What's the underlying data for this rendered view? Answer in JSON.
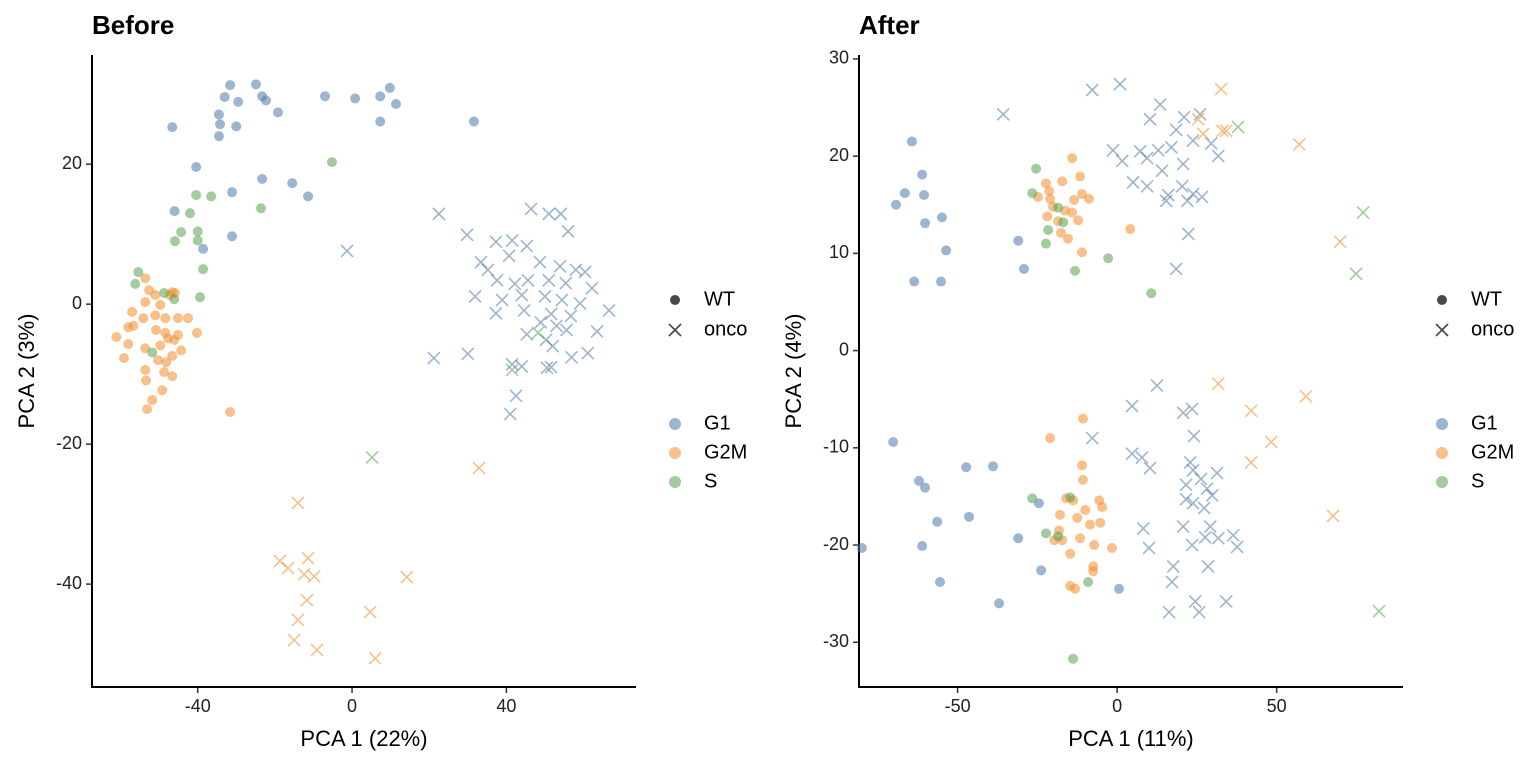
{
  "chart_data": [
    {
      "type": "scatter",
      "title": "Before",
      "xlabel": "PCA 1 (22%)",
      "ylabel": "PCA 2 (3%)",
      "xlim": [
        -67.4,
        73.6
      ],
      "ylim": [
        -54.7,
        35.6
      ],
      "xticks": [
        -40,
        0,
        40
      ],
      "yticks": [
        -40,
        -20,
        0,
        20
      ],
      "opacity": 0.55,
      "shape_legend": [
        {
          "name": "WT",
          "marker": "circle"
        },
        {
          "name": "onco",
          "marker": "x"
        }
      ],
      "color_legend": [
        {
          "name": "G1",
          "color": "#4e79a7"
        },
        {
          "name": "G2M",
          "color": "#f28e2b"
        },
        {
          "name": "S",
          "color": "#59a14f"
        }
      ],
      "series": [
        {
          "phase": "G1",
          "genotype": "WT",
          "x": [
            -46.6,
            -31.6,
            -24.9,
            -23.3,
            -33,
            -29.5,
            -34.5,
            -34.2,
            -34.5,
            -30,
            -22.3,
            -19.2,
            -7,
            0.8,
            7.3,
            9.8,
            11.4,
            7.3,
            31.6,
            -40.4,
            -46,
            -31.1,
            -23.3,
            -15.5,
            -11.4,
            -31.1,
            -38.6
          ],
          "y": [
            25.3,
            31.3,
            31.4,
            29.7,
            29.6,
            28.9,
            27.1,
            25.7,
            24,
            25.4,
            29.1,
            27.4,
            29.7,
            29.4,
            29.7,
            30.9,
            28.6,
            26.1,
            26.1,
            19.6,
            13.3,
            16,
            17.9,
            17.3,
            15.4,
            9.7,
            7.9
          ]
        },
        {
          "phase": "G2M",
          "genotype": "WT",
          "x": [
            -53.6,
            -52.6,
            -51,
            -53.6,
            -49.7,
            -47.2,
            -45.9,
            -57,
            -54.1,
            -51,
            -48.4,
            -45.1,
            -42.5,
            -61.1,
            -58,
            -56.7,
            -50.8,
            -48.4,
            -45.1,
            -40.2,
            -58,
            -53.6,
            -49.7,
            -47.7,
            -46.1,
            -44.3,
            -59.1,
            -50.3,
            -48.2,
            -46.6,
            -53.6,
            -48.7,
            -46.6,
            -53.4,
            -49.2,
            -51.8,
            -53.1,
            -31.6,
            -46.6
          ],
          "y": [
            3.7,
            2,
            1.3,
            0.3,
            -0.1,
            1.3,
            1.6,
            -1.1,
            -2,
            -1.6,
            -2,
            -2,
            -2,
            -4.7,
            -3.3,
            -3.1,
            -3.7,
            -4.1,
            -4.4,
            -4.1,
            -5.7,
            -6.3,
            -5.9,
            -4.9,
            -5.1,
            -6.6,
            -7.7,
            -8,
            -8.3,
            -7.4,
            -9.4,
            -9.7,
            -10.3,
            -10.9,
            -12.3,
            -13.7,
            -15,
            -15.4,
            1.7
          ]
        },
        {
          "phase": "S",
          "genotype": "WT",
          "x": [
            -5.2,
            -23.6,
            -36.5,
            -40.4,
            -42,
            -44.3,
            -40,
            -45.9,
            -40,
            -38.6,
            -55.4,
            -56.2,
            -39.4,
            -48.7,
            -46.1,
            -51.8
          ],
          "y": [
            20.3,
            13.7,
            15.4,
            15.6,
            13,
            10.3,
            10.4,
            9,
            9.1,
            5,
            4.6,
            2.9,
            1,
            1.6,
            0.7,
            -6.9
          ]
        },
        {
          "phase": "G1",
          "genotype": "onco",
          "x": [
            22.5,
            29.8,
            46.4,
            51,
            54.1,
            -1.3,
            37.3,
            41.5,
            56,
            33.4,
            35.2,
            40.7,
            45.3,
            48.7,
            53.9,
            58,
            60.4,
            37.6,
            42.2,
            45.6,
            51,
            55.4,
            62.2,
            31.9,
            38.9,
            44,
            50,
            54.4,
            59.1,
            66.6,
            37.3,
            44.6,
            51.6,
            56.7,
            48.9,
            53,
            55.6,
            63.5,
            45.3,
            50.3,
            52,
            56.9,
            61.1,
            21.2,
            30,
            41.5,
            44,
            50.5,
            42.5,
            41,
            51.6
          ],
          "y": [
            12.9,
            9.9,
            13.6,
            12.9,
            12.9,
            7.6,
            8.9,
            9.1,
            10.4,
            6,
            4.9,
            6.9,
            8.3,
            6,
            5.4,
            4.9,
            4.6,
            3.4,
            2.9,
            3.4,
            3.4,
            3,
            2.3,
            1.1,
            0.6,
            1.3,
            1.1,
            0.6,
            0.1,
            -0.9,
            -1.3,
            -0.9,
            -1.4,
            -1.7,
            -2.6,
            -3.1,
            -3.7,
            -3.9,
            -4.3,
            -5.1,
            -6,
            -7.6,
            -7,
            -7.7,
            -7.1,
            -8.6,
            -8.9,
            -9.1,
            -13.1,
            -15.7,
            -9
          ]
        },
        {
          "phase": "G2M",
          "genotype": "onco",
          "x": [
            -14,
            -18.7,
            -16.6,
            -11.4,
            -12.4,
            -9.8,
            14.2,
            -11.7,
            4.7,
            -14,
            -15,
            -9.1,
            6,
            32.9
          ],
          "y": [
            -28.4,
            -36.7,
            -37.7,
            -36.3,
            -38.6,
            -38.9,
            -39,
            -42.3,
            -44,
            -45.1,
            -48,
            -49.4,
            -50.6,
            -23.4
          ]
        },
        {
          "phase": "S",
          "genotype": "onco",
          "x": [
            5.2,
            41.5,
            48.2
          ],
          "y": [
            -21.9,
            -9.4,
            -4.1
          ]
        }
      ]
    },
    {
      "type": "scatter",
      "title": "After",
      "xlabel": "PCA 1 (11%)",
      "ylabel": "PCA 2 (4%)",
      "xlim": [
        -80.9,
        89.6
      ],
      "ylim": [
        -34.6,
        30.4
      ],
      "xticks": [
        -50,
        0,
        50
      ],
      "yticks": [
        -30,
        -20,
        -10,
        0,
        10,
        20,
        30
      ],
      "opacity": 0.55,
      "shape_legend": [
        {
          "name": "WT",
          "marker": "circle"
        },
        {
          "name": "onco",
          "marker": "x"
        }
      ],
      "color_legend": [
        {
          "name": "G1",
          "color": "#4e79a7"
        },
        {
          "name": "G2M",
          "color": "#f28e2b"
        },
        {
          "name": "S",
          "color": "#59a14f"
        }
      ],
      "series": [
        {
          "phase": "G1",
          "genotype": "WT",
          "x": [
            -64.3,
            -66.5,
            -61.1,
            -60.5,
            -69.3,
            -54.9,
            -60.2,
            -53.6,
            -63.6,
            -55.2,
            -31,
            -29.2,
            -70.2,
            -62.1,
            -60.2,
            -47.3,
            -38.9,
            -80,
            -56.4,
            -61.1,
            -46.4,
            -31,
            -24.5,
            -23.8,
            -55.5,
            -37,
            0.6
          ],
          "y": [
            21.5,
            16.2,
            18.1,
            16,
            15,
            13.7,
            13.1,
            10.3,
            7.1,
            7.1,
            11.3,
            8.4,
            -9.4,
            -13.4,
            -14.1,
            -12,
            -11.9,
            -20.3,
            -17.6,
            -20.1,
            -17.1,
            -19.3,
            -15.7,
            -22.6,
            -23.8,
            -26,
            -24.5
          ]
        },
        {
          "phase": "G2M",
          "genotype": "WT",
          "x": [
            -14.1,
            -22.3,
            -21.3,
            -17.2,
            -11.6,
            -11,
            -24.8,
            -21,
            -13.5,
            -8.8,
            -20.1,
            -16.3,
            -14.1,
            -21.9,
            -18.5,
            -12.2,
            -17.6,
            -15.4,
            4.1,
            -11,
            -21,
            -10.7,
            -11,
            -10.7,
            -16,
            -13.8,
            -10,
            -5.6,
            -4.7,
            -17.9,
            -12.5,
            -8.5,
            -5.3,
            -18.2,
            -17.2,
            -11.6,
            -7.2,
            -1.6,
            -14.7,
            -19.7,
            -7.5,
            -7.5,
            -14.7,
            -13.2
          ],
          "y": [
            19.8,
            17.2,
            16.4,
            17.4,
            17.9,
            16.1,
            15.8,
            15.6,
            15.5,
            15.6,
            14.8,
            14.4,
            14.2,
            13.8,
            13.3,
            13.4,
            12.1,
            11.5,
            12.5,
            10.1,
            -9,
            -7,
            -11.8,
            -13.3,
            -15.2,
            -15.4,
            -16.4,
            -15.4,
            -16.1,
            -16.9,
            -17.2,
            -17.9,
            -17.7,
            -18.5,
            -19.5,
            -19.3,
            -20,
            -20.3,
            -20.9,
            -19.5,
            -22.2,
            -22.7,
            -24.2,
            -24.5
          ]
        },
        {
          "phase": "S",
          "genotype": "WT",
          "x": [
            -25.4,
            -26.6,
            -18.5,
            -16.9,
            -21.6,
            -22.3,
            -13.2,
            -2.8,
            10.7,
            -26.6,
            -14.7,
            -22.3,
            -18.5,
            -9.1,
            -13.8
          ],
          "y": [
            18.7,
            16.2,
            14.7,
            13.2,
            12.4,
            11,
            8.2,
            9.5,
            5.9,
            -15.2,
            -15.1,
            -18.8,
            -19.1,
            -23.8,
            -31.7
          ]
        },
        {
          "phase": "G1",
          "genotype": "onco",
          "x": [
            -35.7,
            -7.8,
            0.9,
            13.5,
            10.3,
            21,
            26,
            18.5,
            -1.3,
            1.6,
            9.4,
            12.9,
            17,
            23.8,
            29.5,
            14.1,
            20.7,
            31.7,
            5,
            9.4,
            16,
            20.4,
            23.8,
            26.6,
            22,
            22.3,
            18.5,
            7.2,
            15.4,
            12.5,
            4.7,
            20.7,
            23.5,
            -7.8,
            24.1,
            4.7,
            7.8,
            10.3,
            22.9,
            23.8,
            26.3,
            31.3,
            21.6,
            28.2,
            29.8,
            21.6,
            23.8,
            27.3,
            8.2,
            20.7,
            29.2,
            31.7,
            36.4,
            27.6,
            23.5,
            37.6,
            10,
            17.6,
            28.5,
            17.2,
            24.5,
            34.2,
            16.3,
            25.7
          ],
          "y": [
            24.3,
            26.8,
            27.4,
            25.3,
            23.8,
            24,
            24.3,
            22.7,
            20.6,
            19.5,
            19.8,
            20.6,
            20.9,
            21.6,
            21.3,
            18.5,
            19.2,
            20,
            17.3,
            16.9,
            16,
            16.9,
            16.1,
            15.8,
            15.4,
            12,
            8.4,
            20.5,
            15.4,
            -3.6,
            -5.7,
            -6.4,
            -6,
            -9,
            -8.8,
            -10.6,
            -11,
            -12.1,
            -11.5,
            -12.3,
            -13.2,
            -12.6,
            -13.8,
            -14.2,
            -14.9,
            -15.3,
            -15.7,
            -16.2,
            -18.3,
            -18.1,
            -18.1,
            -19.3,
            -19,
            -19.2,
            -20,
            -20.2,
            -20.3,
            -22.2,
            -22.2,
            -23.8,
            -25.8,
            -25.8,
            -26.9,
            -26.9
          ]
        },
        {
          "phase": "G2M",
          "genotype": "onco",
          "x": [
            32.6,
            25.4,
            27,
            33,
            34.2,
            57.1,
            69.9,
            31.7,
            42,
            59.2,
            48.3,
            42,
            67.7
          ],
          "y": [
            26.9,
            23.8,
            22.3,
            22.6,
            22.6,
            21.2,
            11.2,
            -3.4,
            -6.2,
            -4.7,
            -9.4,
            -11.5,
            -17
          ]
        },
        {
          "phase": "S",
          "genotype": "onco",
          "x": [
            37.9,
            77.1,
            74.9,
            82.1
          ],
          "y": [
            23,
            14.2,
            7.9,
            -26.8
          ]
        }
      ]
    }
  ]
}
